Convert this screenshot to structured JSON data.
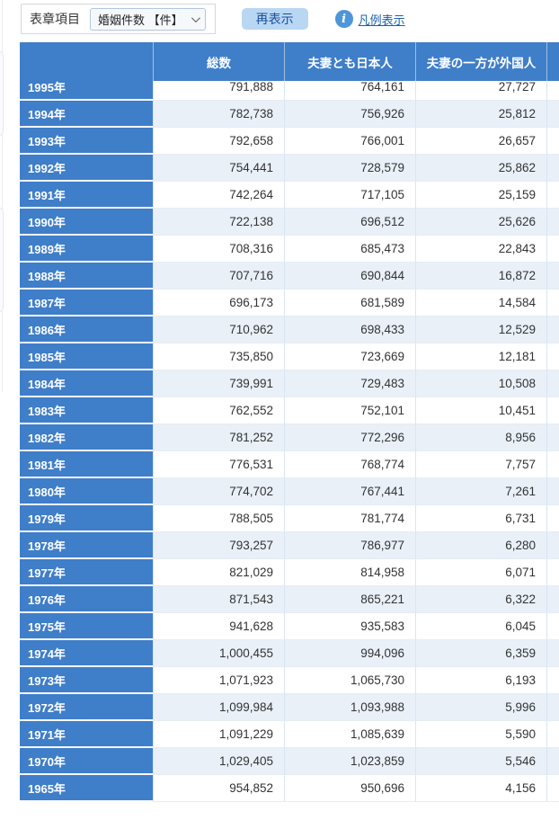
{
  "toolbar": {
    "item_label": "表章項目",
    "select_value": "婚姻件数 【件】",
    "redisplay_button": "再表示",
    "legend_link": "凡例表示"
  },
  "table": {
    "columns": [
      "総数",
      "夫妻とも日本人",
      "夫妻の一方が外国人"
    ],
    "rows": [
      {
        "year": "1995年",
        "values": [
          "791,888",
          "764,161",
          "27,727"
        ]
      },
      {
        "year": "1994年",
        "values": [
          "782,738",
          "756,926",
          "25,812"
        ]
      },
      {
        "year": "1993年",
        "values": [
          "792,658",
          "766,001",
          "26,657"
        ]
      },
      {
        "year": "1992年",
        "values": [
          "754,441",
          "728,579",
          "25,862"
        ]
      },
      {
        "year": "1991年",
        "values": [
          "742,264",
          "717,105",
          "25,159"
        ]
      },
      {
        "year": "1990年",
        "values": [
          "722,138",
          "696,512",
          "25,626"
        ]
      },
      {
        "year": "1989年",
        "values": [
          "708,316",
          "685,473",
          "22,843"
        ]
      },
      {
        "year": "1988年",
        "values": [
          "707,716",
          "690,844",
          "16,872"
        ]
      },
      {
        "year": "1987年",
        "values": [
          "696,173",
          "681,589",
          "14,584"
        ]
      },
      {
        "year": "1986年",
        "values": [
          "710,962",
          "698,433",
          "12,529"
        ]
      },
      {
        "year": "1985年",
        "values": [
          "735,850",
          "723,669",
          "12,181"
        ]
      },
      {
        "year": "1984年",
        "values": [
          "739,991",
          "729,483",
          "10,508"
        ]
      },
      {
        "year": "1983年",
        "values": [
          "762,552",
          "752,101",
          "10,451"
        ]
      },
      {
        "year": "1982年",
        "values": [
          "781,252",
          "772,296",
          "8,956"
        ]
      },
      {
        "year": "1981年",
        "values": [
          "776,531",
          "768,774",
          "7,757"
        ]
      },
      {
        "year": "1980年",
        "values": [
          "774,702",
          "767,441",
          "7,261"
        ]
      },
      {
        "year": "1979年",
        "values": [
          "788,505",
          "781,774",
          "6,731"
        ]
      },
      {
        "year": "1978年",
        "values": [
          "793,257",
          "786,977",
          "6,280"
        ]
      },
      {
        "year": "1977年",
        "values": [
          "821,029",
          "814,958",
          "6,071"
        ]
      },
      {
        "year": "1976年",
        "values": [
          "871,543",
          "865,221",
          "6,322"
        ]
      },
      {
        "year": "1975年",
        "values": [
          "941,628",
          "935,583",
          "6,045"
        ]
      },
      {
        "year": "1974年",
        "values": [
          "1,000,455",
          "994,096",
          "6,359"
        ]
      },
      {
        "year": "1973年",
        "values": [
          "1,071,923",
          "1,065,730",
          "6,193"
        ]
      },
      {
        "year": "1972年",
        "values": [
          "1,099,984",
          "1,093,988",
          "5,996"
        ]
      },
      {
        "year": "1971年",
        "values": [
          "1,091,229",
          "1,085,639",
          "5,590"
        ]
      },
      {
        "year": "1970年",
        "values": [
          "1,029,405",
          "1,023,859",
          "5,546"
        ]
      },
      {
        "year": "1965年",
        "values": [
          "954,852",
          "950,696",
          "4,156"
        ]
      }
    ],
    "colors": {
      "header_blue": "#3f7ec9",
      "alt_row": "#e9f0f8",
      "button_bg": "#b9d7f3",
      "link_blue": "#1a5fb0"
    }
  }
}
